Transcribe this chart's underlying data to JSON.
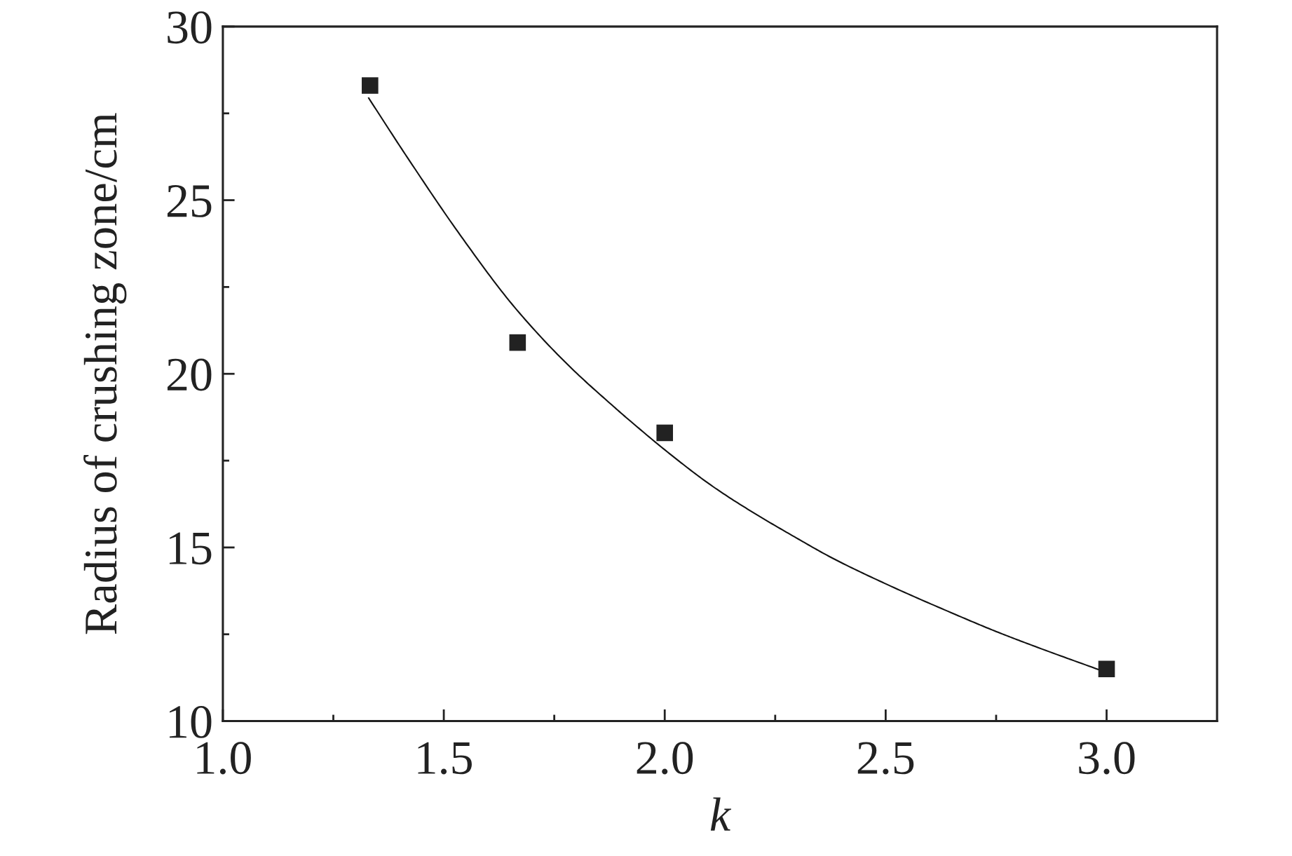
{
  "chart_data": {
    "type": "scatter",
    "xlabel": "k",
    "ylabel": "Radius of crushing zone/cm",
    "xlim": [
      1.0,
      3.25
    ],
    "ylim": [
      10,
      30
    ],
    "xticks": [
      {
        "value": 1.0,
        "label": "1.0"
      },
      {
        "value": 1.25,
        "label": null
      },
      {
        "value": 1.5,
        "label": "1.5"
      },
      {
        "value": 1.75,
        "label": null
      },
      {
        "value": 2.0,
        "label": "2.0"
      },
      {
        "value": 2.25,
        "label": null
      },
      {
        "value": 2.5,
        "label": "2.5"
      },
      {
        "value": 2.75,
        "label": null
      },
      {
        "value": 3.0,
        "label": "3.0"
      }
    ],
    "yticks": [
      10,
      {
        "value": 12.5,
        "label": null
      },
      15,
      {
        "value": 17.5,
        "label": null
      },
      20,
      {
        "value": 22.5,
        "label": null
      },
      25,
      {
        "value": 27.5,
        "label": null
      },
      30
    ],
    "grid": false,
    "legend": false,
    "series": [
      {
        "color": "#222222",
        "marker": "square",
        "x": [
          1.333,
          1.667,
          2.0,
          3.0
        ],
        "values": [
          28.3,
          20.9,
          18.3,
          11.5
        ]
      },
      {
        "type": "line",
        "color": "#111111",
        "marker": "none",
        "line_style": "solid",
        "x": [
          1.33,
          1.417,
          1.538,
          1.66,
          1.78,
          1.885,
          1.923,
          2.015,
          2.105,
          2.197,
          2.289,
          2.38,
          2.504,
          2.656,
          2.746,
          2.838,
          3.0
        ],
        "values": [
          27.94,
          26.24,
          23.98,
          21.92,
          20.27,
          19.05,
          18.63,
          17.66,
          16.79,
          16.03,
          15.34,
          14.69,
          13.93,
          13.08,
          12.6,
          12.15,
          11.4
        ]
      }
    ]
  }
}
